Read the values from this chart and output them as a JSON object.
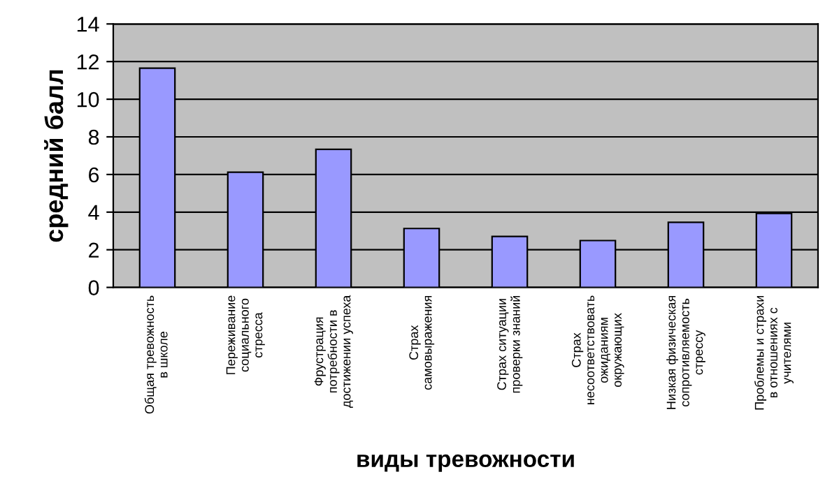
{
  "chart_data": {
    "type": "bar",
    "xlabel": "виды тревожности",
    "ylabel": "средний балл",
    "categories": [
      "Общая тревожность\nв школе",
      "Переживание\nсоциального\nстресса",
      "Фрустрация\nпотребности в\nдостижении успеха",
      "Страх\nсамовыражения",
      "Страх ситуации\nпроверки знаний",
      "Страх\nнесоответствовать\nожиданиям\nокружающих",
      "Низкая физическая\nсопротивляемость\nстрессу",
      "Проблемы и страхи\nв отношениях с\nучителями"
    ],
    "values": [
      11.65,
      6.12,
      7.34,
      3.13,
      2.71,
      2.49,
      3.46,
      3.93
    ],
    "color": "#9999ff",
    "ylim": [
      0,
      14
    ],
    "yticks": [
      0,
      2,
      4,
      6,
      8,
      10,
      12,
      14
    ],
    "grid": "y"
  }
}
